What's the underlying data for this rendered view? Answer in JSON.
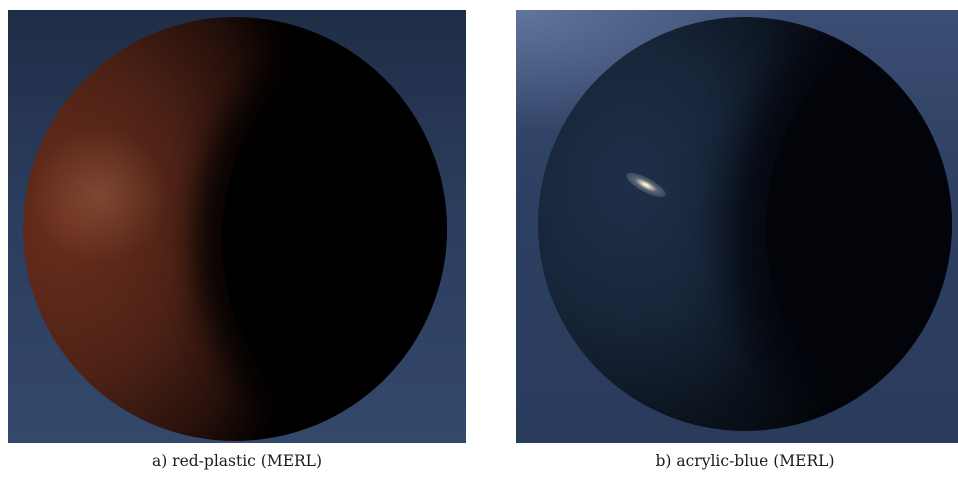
{
  "panels": [
    {
      "caption": "a) red-plastic (MERL)",
      "material_color": "#5a2818",
      "background_color": "#2b3d5d"
    },
    {
      "caption": "b) acrylic-blue (MERL)",
      "material_color": "#1a2a42",
      "background_color": "#2e4063"
    }
  ]
}
